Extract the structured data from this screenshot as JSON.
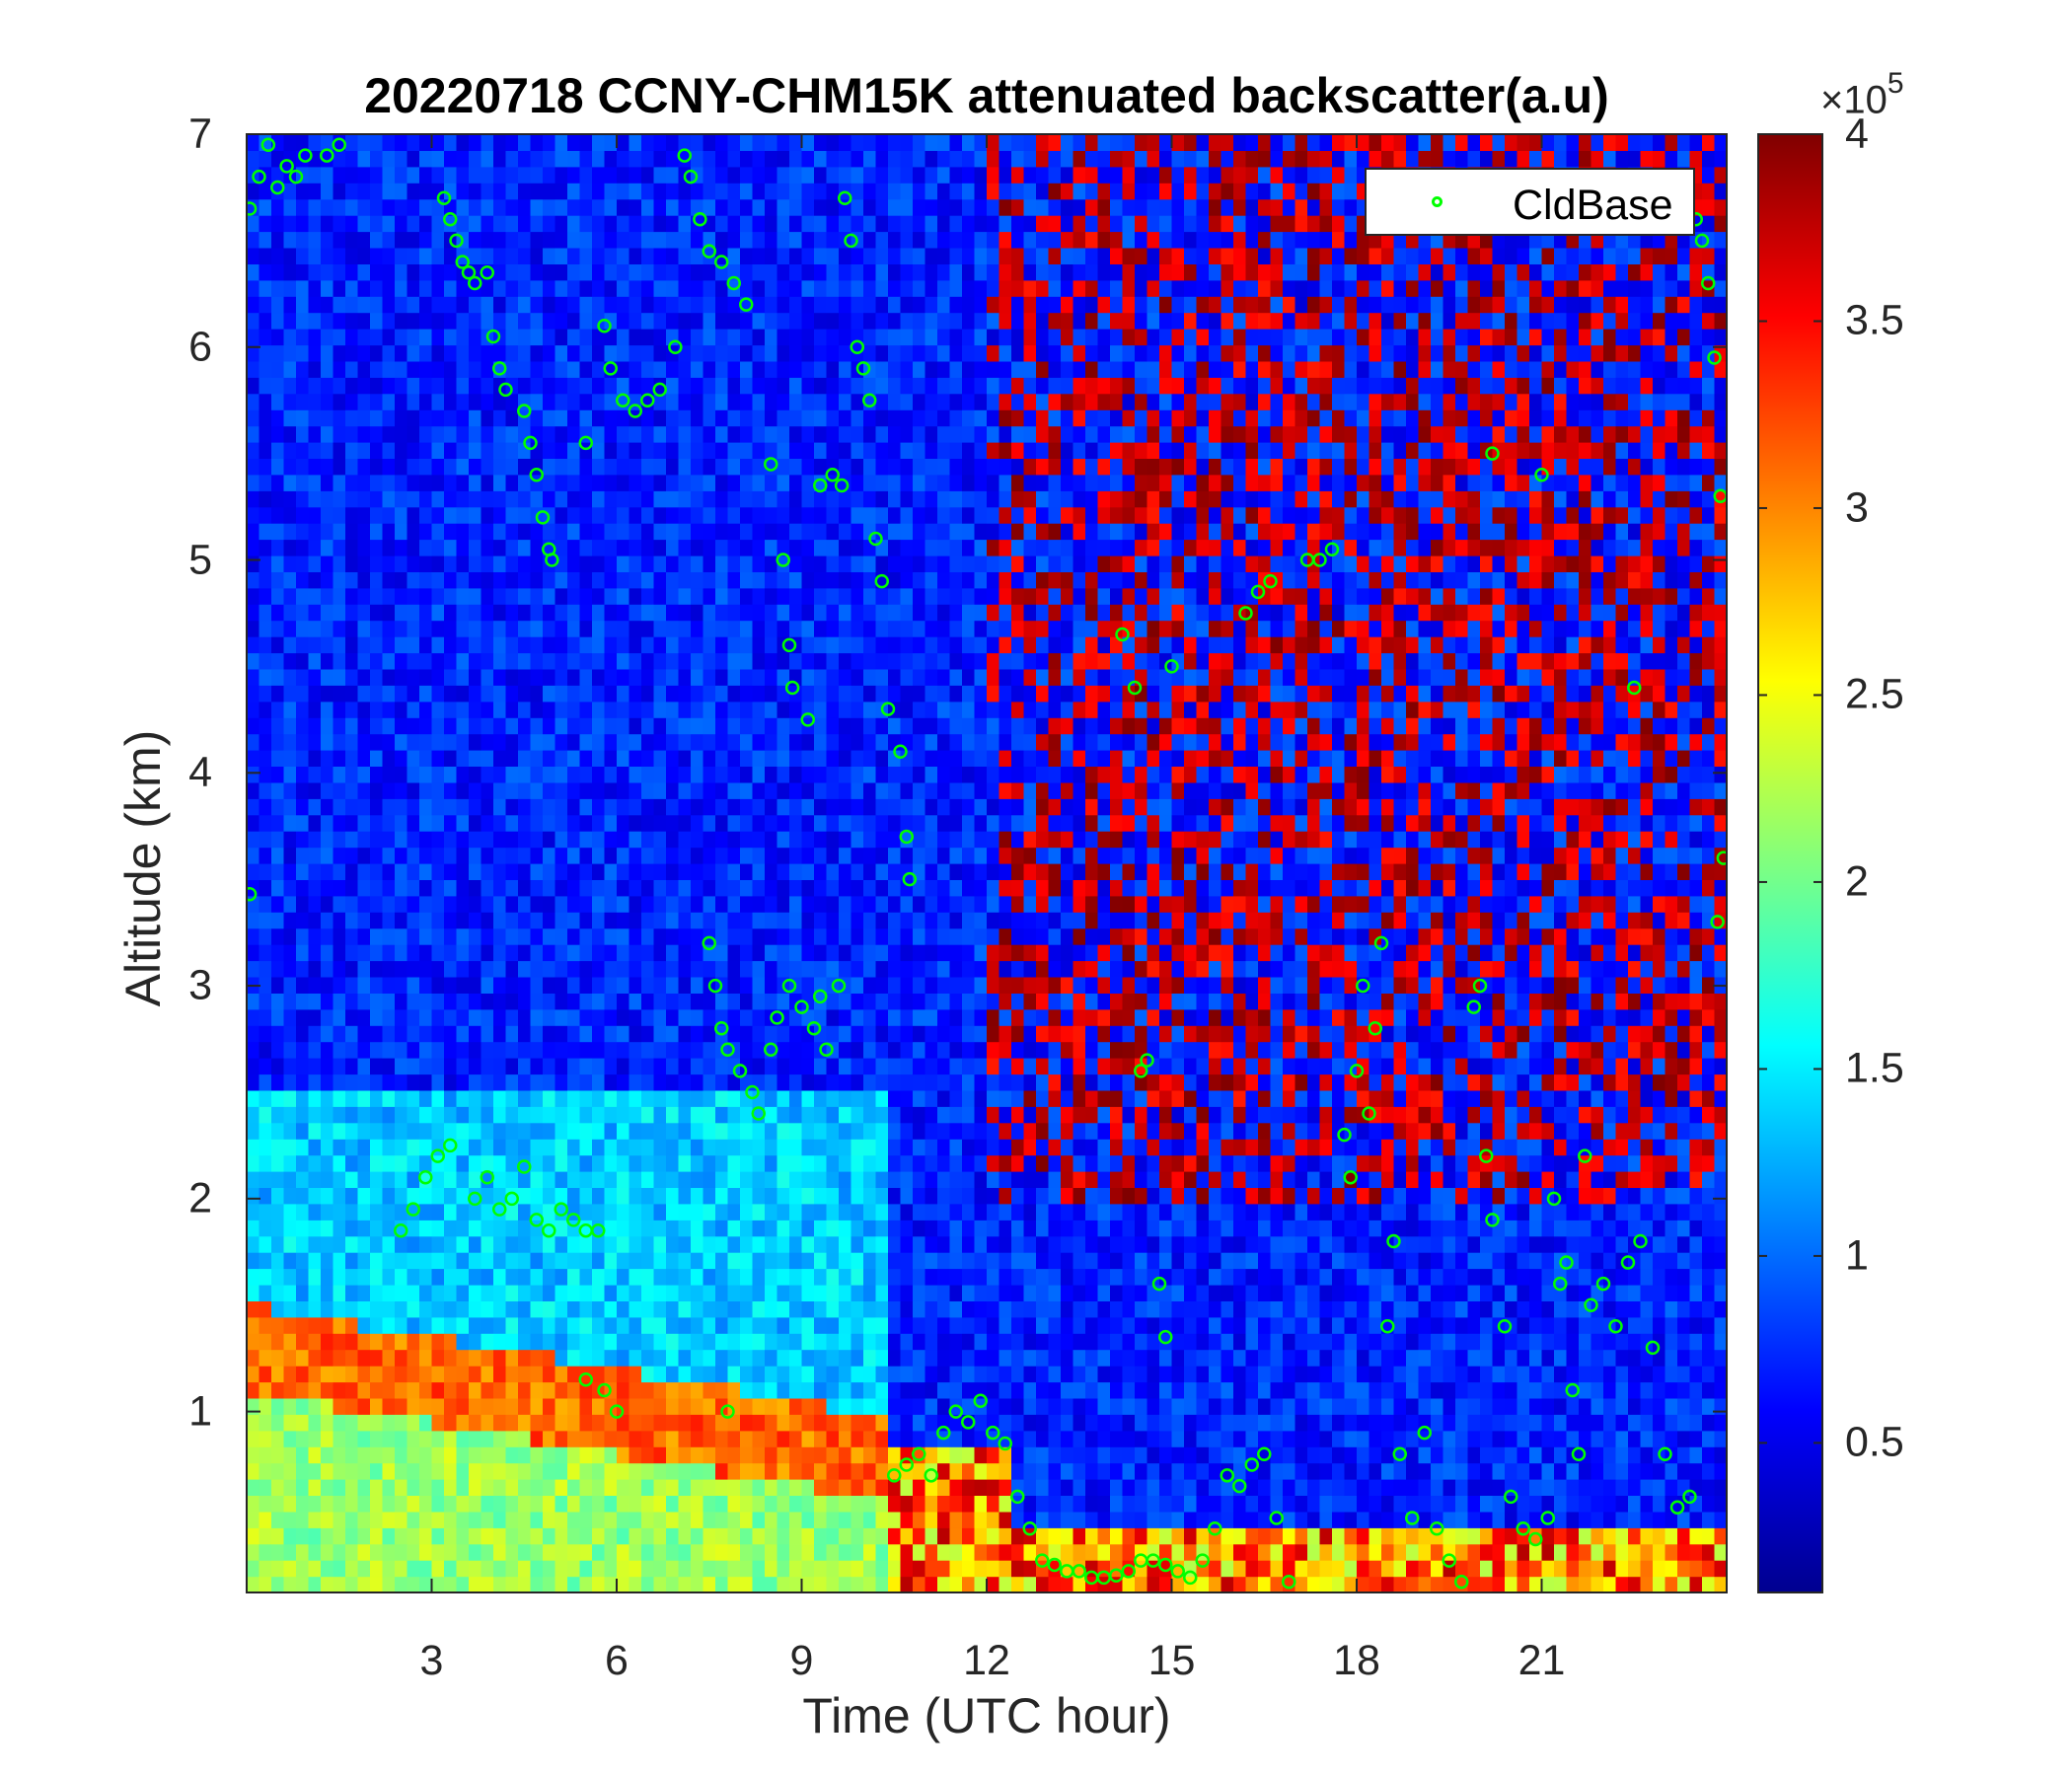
{
  "chart_data": {
    "type": "heatmap",
    "title": "20220718 CCNY-CHM15K attenuated backscatter(a.u)",
    "xlabel": "Time (UTC hour)",
    "ylabel": "Altitude (km)",
    "xlim": [
      0,
      24
    ],
    "ylim": [
      0.15,
      7
    ],
    "xticks": [
      3,
      6,
      9,
      12,
      15,
      18,
      21
    ],
    "xtick_labels": [
      "3",
      "6",
      "9",
      "12",
      "15",
      "18",
      "21"
    ],
    "yticks": [
      1,
      2,
      3,
      4,
      5,
      6,
      7
    ],
    "ytick_labels": [
      "1",
      "2",
      "3",
      "4",
      "5",
      "6",
      "7"
    ],
    "colorbar": {
      "colormap": "jet",
      "clim": [
        0.1,
        4
      ],
      "ticks": [
        0.5,
        1,
        1.5,
        2,
        2.5,
        3,
        3.5,
        4
      ],
      "tick_labels": [
        "0.5",
        "1",
        "1.5",
        "2",
        "2.5",
        "3",
        "3.5",
        "4"
      ],
      "multiplier_label": "×10",
      "multiplier_exponent": "5"
    },
    "legend": {
      "placement": "top-right",
      "entries": [
        "CldBase"
      ]
    },
    "series": [
      {
        "name": "CldBase",
        "marker": "circle",
        "color": "#00ff00",
        "points": [
          [
            0.05,
            6.65
          ],
          [
            0.2,
            6.8
          ],
          [
            0.35,
            6.95
          ],
          [
            0.5,
            6.75
          ],
          [
            0.65,
            6.85
          ],
          [
            0.8,
            6.8
          ],
          [
            0.95,
            6.9
          ],
          [
            1.3,
            6.9
          ],
          [
            1.5,
            6.95
          ],
          [
            0.05,
            3.43
          ],
          [
            3.2,
            6.7
          ],
          [
            3.3,
            6.6
          ],
          [
            3.4,
            6.5
          ],
          [
            3.5,
            6.4
          ],
          [
            3.6,
            6.35
          ],
          [
            3.7,
            6.3
          ],
          [
            3.9,
            6.35
          ],
          [
            4.0,
            6.05
          ],
          [
            4.1,
            5.9
          ],
          [
            4.2,
            5.8
          ],
          [
            4.5,
            5.7
          ],
          [
            4.6,
            5.55
          ],
          [
            4.7,
            5.4
          ],
          [
            4.8,
            5.2
          ],
          [
            4.9,
            5.05
          ],
          [
            4.95,
            5.0
          ],
          [
            5.5,
            5.55
          ],
          [
            5.8,
            6.1
          ],
          [
            5.9,
            5.9
          ],
          [
            6.1,
            5.75
          ],
          [
            6.3,
            5.7
          ],
          [
            6.5,
            5.75
          ],
          [
            6.7,
            5.8
          ],
          [
            6.95,
            6.0
          ],
          [
            7.1,
            6.9
          ],
          [
            7.2,
            6.8
          ],
          [
            7.35,
            6.6
          ],
          [
            7.5,
            6.45
          ],
          [
            7.7,
            6.4
          ],
          [
            7.9,
            6.3
          ],
          [
            8.1,
            6.2
          ],
          [
            8.5,
            5.45
          ],
          [
            8.7,
            5.0
          ],
          [
            8.8,
            4.6
          ],
          [
            8.85,
            4.4
          ],
          [
            9.1,
            4.25
          ],
          [
            9.3,
            5.35
          ],
          [
            9.5,
            5.4
          ],
          [
            9.65,
            5.35
          ],
          [
            9.7,
            6.7
          ],
          [
            9.8,
            6.5
          ],
          [
            9.9,
            6.0
          ],
          [
            10.0,
            5.9
          ],
          [
            10.1,
            5.75
          ],
          [
            10.2,
            5.1
          ],
          [
            10.3,
            4.9
          ],
          [
            10.4,
            4.3
          ],
          [
            10.6,
            4.1
          ],
          [
            10.7,
            3.7
          ],
          [
            10.75,
            3.5
          ],
          [
            2.5,
            1.85
          ],
          [
            2.7,
            1.95
          ],
          [
            2.9,
            2.1
          ],
          [
            3.1,
            2.2
          ],
          [
            3.3,
            2.25
          ],
          [
            3.7,
            2.0
          ],
          [
            3.9,
            2.1
          ],
          [
            4.1,
            1.95
          ],
          [
            4.3,
            2.0
          ],
          [
            4.5,
            2.15
          ],
          [
            4.7,
            1.9
          ],
          [
            4.9,
            1.85
          ],
          [
            5.1,
            1.95
          ],
          [
            5.3,
            1.9
          ],
          [
            5.5,
            1.85
          ],
          [
            5.7,
            1.85
          ],
          [
            5.5,
            1.15
          ],
          [
            5.8,
            1.1
          ],
          [
            6.0,
            1.0
          ],
          [
            7.8,
            1.0
          ],
          [
            7.5,
            3.2
          ],
          [
            7.6,
            3.0
          ],
          [
            7.7,
            2.8
          ],
          [
            7.8,
            2.7
          ],
          [
            8.0,
            2.6
          ],
          [
            8.2,
            2.5
          ],
          [
            8.3,
            2.4
          ],
          [
            8.5,
            2.7
          ],
          [
            8.6,
            2.85
          ],
          [
            8.8,
            3.0
          ],
          [
            9.0,
            2.9
          ],
          [
            9.2,
            2.8
          ],
          [
            9.4,
            2.7
          ],
          [
            9.3,
            2.95
          ],
          [
            9.6,
            3.0
          ],
          [
            10.5,
            0.7
          ],
          [
            10.7,
            0.75
          ],
          [
            10.9,
            0.8
          ],
          [
            11.1,
            0.7
          ],
          [
            11.3,
            0.9
          ],
          [
            11.5,
            1.0
          ],
          [
            11.7,
            0.95
          ],
          [
            11.9,
            1.05
          ],
          [
            12.1,
            0.9
          ],
          [
            12.3,
            0.85
          ],
          [
            12.5,
            0.6
          ],
          [
            12.7,
            0.45
          ],
          [
            12.9,
            0.3
          ],
          [
            13.1,
            0.28
          ],
          [
            13.3,
            0.25
          ],
          [
            13.5,
            0.25
          ],
          [
            13.7,
            0.22
          ],
          [
            13.9,
            0.22
          ],
          [
            14.1,
            0.23
          ],
          [
            14.3,
            0.25
          ],
          [
            14.5,
            0.3
          ],
          [
            14.7,
            0.3
          ],
          [
            14.9,
            0.28
          ],
          [
            15.1,
            0.25
          ],
          [
            15.3,
            0.22
          ],
          [
            15.5,
            0.3
          ],
          [
            15.7,
            0.45
          ],
          [
            15.9,
            0.7
          ],
          [
            16.1,
            0.65
          ],
          [
            16.3,
            0.75
          ],
          [
            16.5,
            0.8
          ],
          [
            16.7,
            0.5
          ],
          [
            16.9,
            0.2
          ],
          [
            14.2,
            4.65
          ],
          [
            14.4,
            4.4
          ],
          [
            14.5,
            2.6
          ],
          [
            14.6,
            2.65
          ],
          [
            14.8,
            1.6
          ],
          [
            14.9,
            1.35
          ],
          [
            15.0,
            4.5
          ],
          [
            16.2,
            4.75
          ],
          [
            16.4,
            4.85
          ],
          [
            16.6,
            4.9
          ],
          [
            17.2,
            5.0
          ],
          [
            17.4,
            5.0
          ],
          [
            17.6,
            5.05
          ],
          [
            17.8,
            2.3
          ],
          [
            17.9,
            2.1
          ],
          [
            18.0,
            2.6
          ],
          [
            18.1,
            3.0
          ],
          [
            18.2,
            2.4
          ],
          [
            18.3,
            2.8
          ],
          [
            18.4,
            3.2
          ],
          [
            18.5,
            1.4
          ],
          [
            18.6,
            1.8
          ],
          [
            18.7,
            0.8
          ],
          [
            18.9,
            0.5
          ],
          [
            19.1,
            0.9
          ],
          [
            19.3,
            0.45
          ],
          [
            19.5,
            0.3
          ],
          [
            19.7,
            0.2
          ],
          [
            19.9,
            2.9
          ],
          [
            20.0,
            3.0
          ],
          [
            20.1,
            2.2
          ],
          [
            20.2,
            1.9
          ],
          [
            20.4,
            1.4
          ],
          [
            20.5,
            0.6
          ],
          [
            20.7,
            0.45
          ],
          [
            20.9,
            0.4
          ],
          [
            21.1,
            0.5
          ],
          [
            20.2,
            5.5
          ],
          [
            21.0,
            5.4
          ],
          [
            21.2,
            2.0
          ],
          [
            21.3,
            1.6
          ],
          [
            21.4,
            1.7
          ],
          [
            21.5,
            1.1
          ],
          [
            21.6,
            0.8
          ],
          [
            21.7,
            2.2
          ],
          [
            21.8,
            1.5
          ],
          [
            22.0,
            1.6
          ],
          [
            22.2,
            1.4
          ],
          [
            22.4,
            1.7
          ],
          [
            22.5,
            4.4
          ],
          [
            22.6,
            1.8
          ],
          [
            22.8,
            1.3
          ],
          [
            23.0,
            0.8
          ],
          [
            23.2,
            0.55
          ],
          [
            23.4,
            0.6
          ],
          [
            23.5,
            6.6
          ],
          [
            23.6,
            6.5
          ],
          [
            23.7,
            6.3
          ],
          [
            23.8,
            5.95
          ],
          [
            23.9,
            5.3
          ],
          [
            23.95,
            3.6
          ],
          [
            23.85,
            3.3
          ]
        ]
      }
    ]
  }
}
